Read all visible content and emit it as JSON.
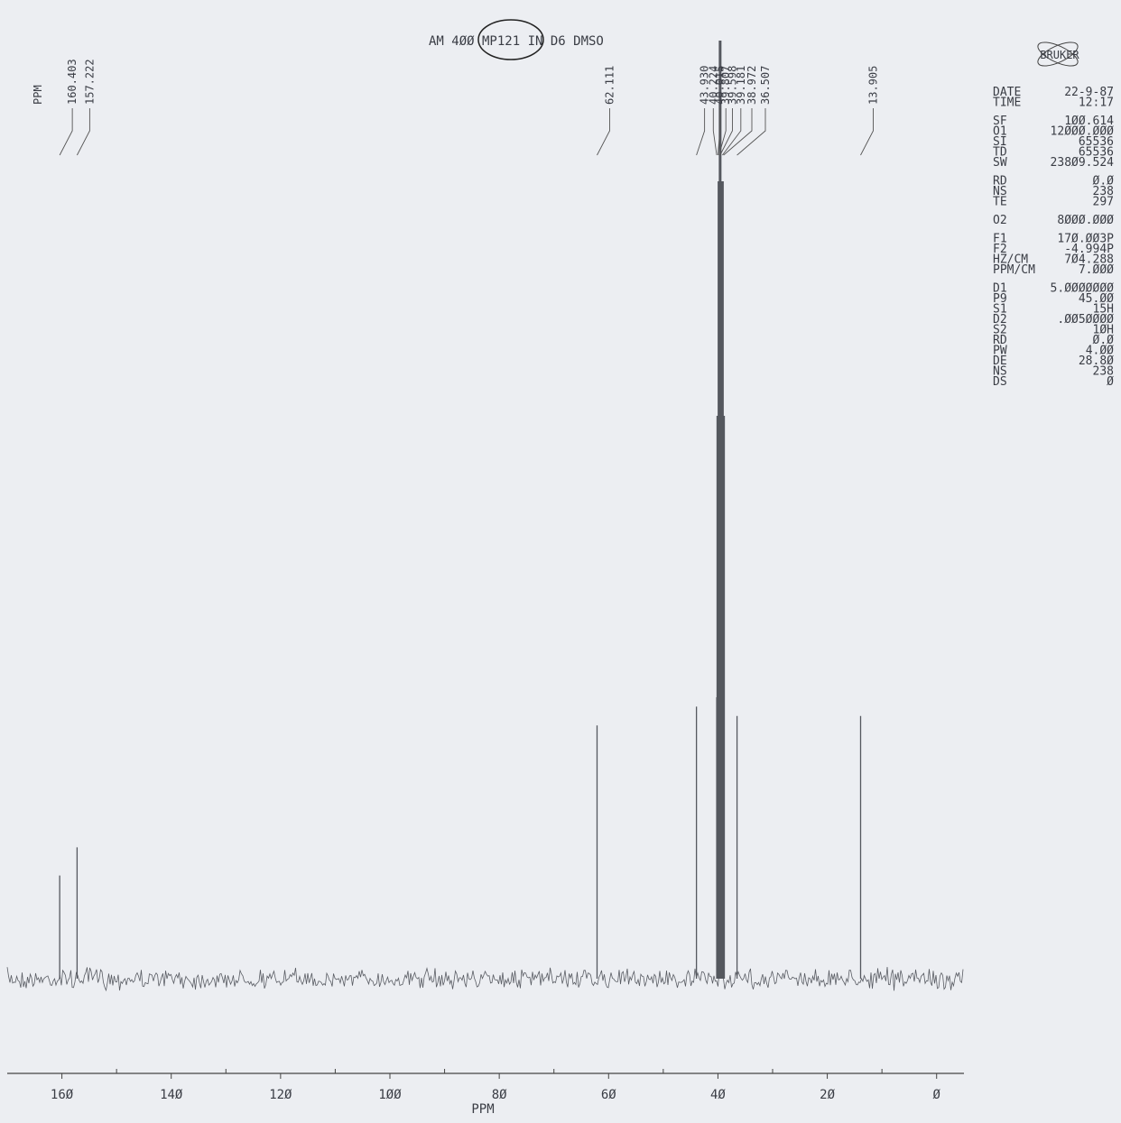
{
  "chart_data": {
    "type": "spectrum",
    "title": "AM 4ØØ MP121 IN D6 DMSO",
    "peak_heading": "PPM",
    "xlabel": "PPM",
    "x": [
      160.403,
      157.222,
      62.111,
      43.93,
      40.224,
      40.015,
      39.807,
      39.598,
      39.181,
      38.972,
      36.507,
      13.905
    ],
    "x_labels": [
      "160.403",
      "157.222",
      "62.111",
      "43.930",
      "40.224",
      "40.015",
      "39.807",
      "39.598",
      "39.181",
      "38.972",
      "36.507",
      "13.905"
    ],
    "values": [
      11,
      14,
      27,
      29,
      30,
      60,
      85,
      100,
      85,
      60,
      28,
      28
    ],
    "color": "#55585f",
    "xlim": [
      170,
      -5
    ],
    "xticks": [
      {
        "value": 160,
        "label": "16Ø"
      },
      {
        "value": 140,
        "label": "14Ø"
      },
      {
        "value": 120,
        "label": "12Ø"
      },
      {
        "value": 100,
        "label": "1ØØ"
      },
      {
        "value": 80,
        "label": "8Ø"
      },
      {
        "value": 60,
        "label": "6Ø"
      },
      {
        "value": 40,
        "label": "4Ø"
      },
      {
        "value": 20,
        "label": "2Ø"
      },
      {
        "value": 0,
        "label": "Ø"
      }
    ],
    "xminorticks": [
      150,
      130,
      110,
      90,
      70,
      50,
      30,
      10
    ]
  },
  "logo": "BRUKER",
  "params": [
    [
      {
        "key": "DATE",
        "value": "22-9-87"
      },
      {
        "key": "TIME",
        "value": "12:17"
      }
    ],
    [
      {
        "key": "SF",
        "value": "1ØØ.614"
      },
      {
        "key": "O1",
        "value": "12ØØØ.ØØØ"
      },
      {
        "key": "SI",
        "value": "65536"
      },
      {
        "key": "TD",
        "value": "65536"
      },
      {
        "key": "SW",
        "value": "238Ø9.524"
      }
    ],
    [
      {
        "key": "RD",
        "value": "Ø.Ø"
      },
      {
        "key": "NS",
        "value": "238"
      },
      {
        "key": "TE",
        "value": "297"
      }
    ],
    [
      {
        "key": "O2",
        "value": "8ØØØ.ØØØ"
      }
    ],
    [
      {
        "key": "F1",
        "value": "17Ø.ØØ3P"
      },
      {
        "key": "F2",
        "value": "-4.994P"
      },
      {
        "key": "HZ/CM",
        "value": "7Ø4.288"
      },
      {
        "key": "PPM/CM",
        "value": "7.ØØØ"
      }
    ],
    [
      {
        "key": "D1",
        "value": "5.ØØØØØØØ"
      },
      {
        "key": "P9",
        "value": "45.ØØ"
      },
      {
        "key": "S1",
        "value": "15H"
      },
      {
        "key": "D2",
        "value": ".ØØ5ØØØØ"
      },
      {
        "key": "S2",
        "value": "1ØH"
      },
      {
        "key": "RD",
        "value": "Ø.Ø"
      },
      {
        "key": "PW",
        "value": "4.ØØ"
      },
      {
        "key": "DE",
        "value": "28.8Ø"
      },
      {
        "key": "NS",
        "value": "238"
      },
      {
        "key": "DS",
        "value": "Ø"
      }
    ]
  ]
}
